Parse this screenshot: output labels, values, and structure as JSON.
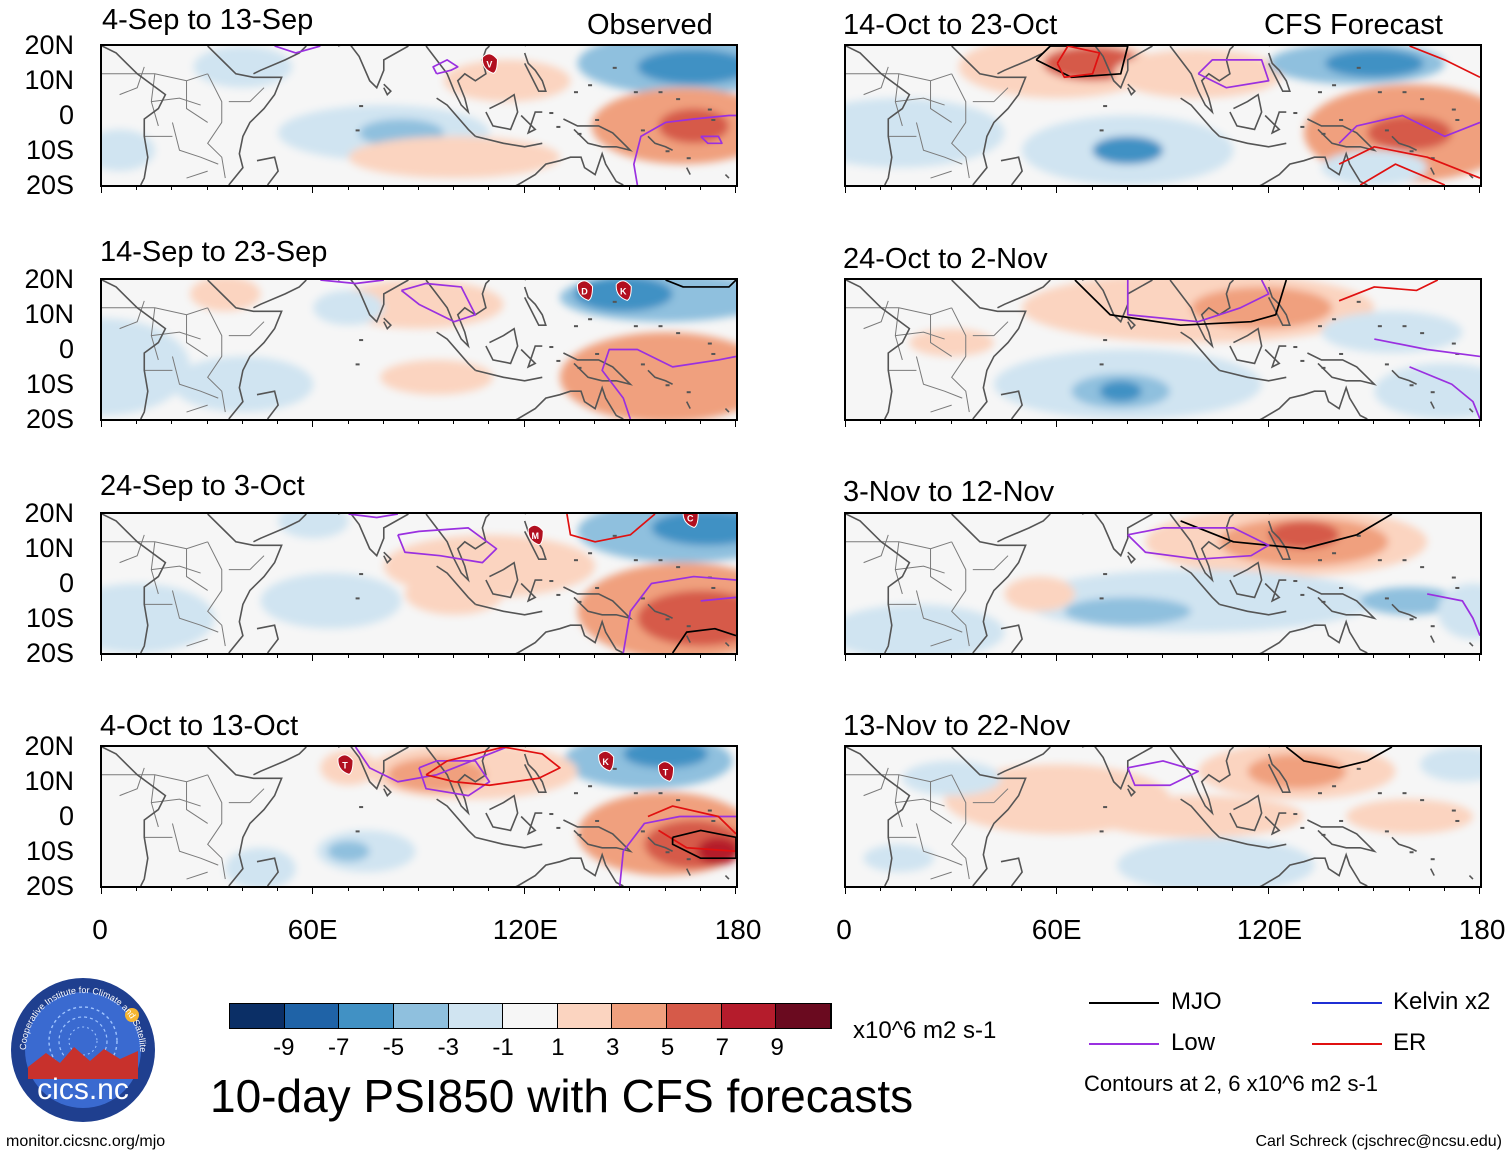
{
  "columns": [
    {
      "tag": "Observed",
      "panels": [
        {
          "title": "4-Sep to 13-Sep"
        },
        {
          "title": "14-Sep to 23-Sep"
        },
        {
          "title": "24-Sep to 3-Oct"
        },
        {
          "title": "4-Oct to 13-Oct"
        }
      ]
    },
    {
      "tag": "CFS Forecast",
      "panels": [
        {
          "title": "14-Oct to 23-Oct"
        },
        {
          "title": "24-Oct to 2-Nov"
        },
        {
          "title": "3-Nov to 12-Nov"
        },
        {
          "title": "13-Nov to 22-Nov"
        }
      ]
    }
  ],
  "chart_data": {
    "type": "heatmap",
    "title": "10-day PSI850 with CFS forecasts",
    "units": "x10^6 m2 s-1",
    "y_ticks": [
      "20N",
      "10N",
      "0",
      "10S",
      "20S"
    ],
    "x_ticks": [
      "0",
      "60E",
      "120E",
      "180"
    ],
    "xlim": [
      0,
      180
    ],
    "ylim": [
      -20,
      20
    ],
    "colorbar": {
      "labels": [
        "-9",
        "-7",
        "-5",
        "-3",
        "-1",
        "1",
        "3",
        "5",
        "7",
        "9"
      ],
      "colors": [
        "#0b2f66",
        "#1f63a7",
        "#4191c4",
        "#8fc0de",
        "#d0e4f1",
        "#f6f6f6",
        "#fbd4c0",
        "#f0a07e",
        "#d65a49",
        "#b51c2c",
        "#6a0a1f"
      ]
    },
    "legend": [
      {
        "label": "MJO",
        "color": "#000000"
      },
      {
        "label": "Kelvin x2",
        "color": "#1f2fd4"
      },
      {
        "label": "Low",
        "color": "#9a30e0"
      },
      {
        "label": "ER",
        "color": "#e01010"
      }
    ],
    "contour_note": "Contours at 2, 6 x10^6 m2 s-1",
    "storm_markers": [
      {
        "panel": 0,
        "letter": "V"
      },
      {
        "panel": 1,
        "letter": "D"
      },
      {
        "panel": 1,
        "letter": "K"
      },
      {
        "panel": 2,
        "letter": "M"
      },
      {
        "panel": 2,
        "letter": "C"
      },
      {
        "panel": 3,
        "letter": "T"
      },
      {
        "panel": 3,
        "letter": "K"
      },
      {
        "panel": 3,
        "letter": "T"
      }
    ]
  },
  "credits": {
    "logo_text": "cics.nc",
    "logo_ring": "Cooperative Institute for Climate and Satellites",
    "url": "monitor.cicsnc.org/mjo",
    "author": "Carl Schreck (cjschrec@ncsu.edu)"
  }
}
